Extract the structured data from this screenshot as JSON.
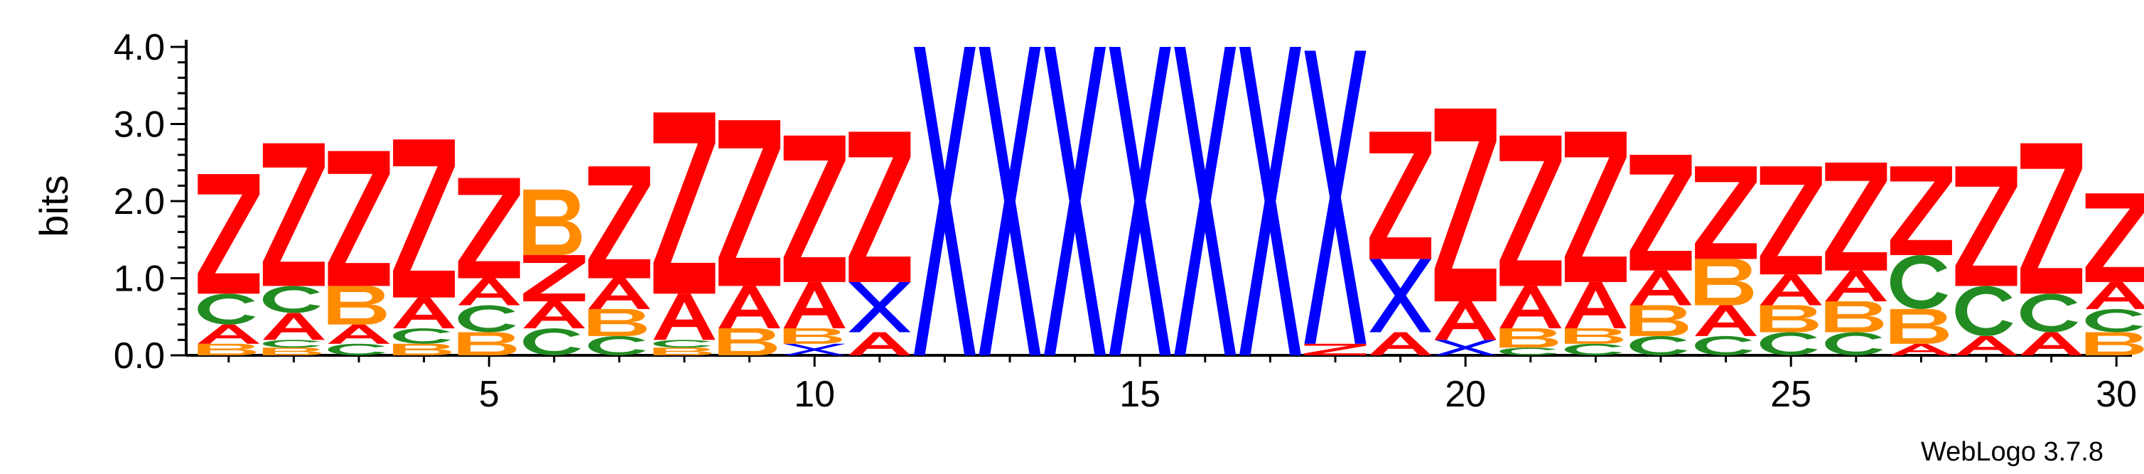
{
  "chart_data": {
    "type": "sequence-logo",
    "ylabel": "bits",
    "ylim": [
      0,
      4.0
    ],
    "y_ticks": [
      "0.0",
      "1.0",
      "2.0",
      "3.0",
      "4.0"
    ],
    "y_tick_values": [
      0,
      1,
      2,
      3,
      4
    ],
    "x_range": [
      1,
      30
    ],
    "x_ticks": [
      "5",
      "10",
      "15",
      "20",
      "25",
      "30"
    ],
    "x_tick_values": [
      5,
      10,
      15,
      20,
      25,
      30
    ],
    "credit": "WebLogo 3.7.8",
    "colors": {
      "Z": "#ff0000",
      "A": "#ff0000",
      "X": "#0000ff",
      "B": "#ff8c00",
      "C": "#228b22"
    },
    "positions": [
      {
        "pos": 1,
        "stack": [
          [
            "B",
            0.15
          ],
          [
            "A",
            0.25
          ],
          [
            "C",
            0.4
          ],
          [
            "Z",
            1.55
          ]
        ]
      },
      {
        "pos": 2,
        "stack": [
          [
            "B",
            0.1
          ],
          [
            "C",
            0.1
          ],
          [
            "A",
            0.35
          ],
          [
            "C",
            0.35
          ],
          [
            "Z",
            1.85
          ]
        ]
      },
      {
        "pos": 3,
        "stack": [
          [
            "C",
            0.15
          ],
          [
            "A",
            0.25
          ],
          [
            "B",
            0.5
          ],
          [
            "Z",
            1.75
          ]
        ]
      },
      {
        "pos": 4,
        "stack": [
          [
            "B",
            0.15
          ],
          [
            "C",
            0.2
          ],
          [
            "A",
            0.4
          ],
          [
            "Z",
            2.05
          ]
        ]
      },
      {
        "pos": 5,
        "stack": [
          [
            "B",
            0.3
          ],
          [
            "C",
            0.35
          ],
          [
            "A",
            0.35
          ],
          [
            "Z",
            1.3
          ]
        ]
      },
      {
        "pos": 6,
        "stack": [
          [
            "C",
            0.35
          ],
          [
            "A",
            0.35
          ],
          [
            "Z",
            0.6
          ],
          [
            "B",
            0.85
          ]
        ]
      },
      {
        "pos": 7,
        "stack": [
          [
            "C",
            0.25
          ],
          [
            "B",
            0.35
          ],
          [
            "A",
            0.4
          ],
          [
            "Z",
            1.45
          ]
        ]
      },
      {
        "pos": 8,
        "stack": [
          [
            "B",
            0.1
          ],
          [
            "C",
            0.1
          ],
          [
            "A",
            0.6
          ],
          [
            "Z",
            2.35
          ]
        ]
      },
      {
        "pos": 9,
        "stack": [
          [
            "B",
            0.35
          ],
          [
            "A",
            0.55
          ],
          [
            "Z",
            2.15
          ]
        ]
      },
      {
        "pos": 10,
        "stack": [
          [
            "X",
            0.15
          ],
          [
            "B",
            0.2
          ],
          [
            "A",
            0.6
          ],
          [
            "Z",
            1.9
          ]
        ]
      },
      {
        "pos": 11,
        "stack": [
          [
            "A",
            0.3
          ],
          [
            "X",
            0.65
          ],
          [
            "Z",
            1.95
          ]
        ]
      },
      {
        "pos": 12,
        "stack": [
          [
            "X",
            4.0
          ]
        ]
      },
      {
        "pos": 13,
        "stack": [
          [
            "X",
            4.0
          ]
        ]
      },
      {
        "pos": 14,
        "stack": [
          [
            "X",
            4.0
          ]
        ]
      },
      {
        "pos": 15,
        "stack": [
          [
            "X",
            4.0
          ]
        ]
      },
      {
        "pos": 16,
        "stack": [
          [
            "X",
            4.0
          ]
        ]
      },
      {
        "pos": 17,
        "stack": [
          [
            "X",
            4.0
          ]
        ]
      },
      {
        "pos": 18,
        "stack": [
          [
            "Z",
            0.15
          ],
          [
            "X",
            3.8
          ]
        ]
      },
      {
        "pos": 19,
        "stack": [
          [
            "A",
            0.3
          ],
          [
            "X",
            0.95
          ],
          [
            "Z",
            1.65
          ]
        ]
      },
      {
        "pos": 20,
        "stack": [
          [
            "X",
            0.2
          ],
          [
            "A",
            0.5
          ],
          [
            "Z",
            2.5
          ]
        ]
      },
      {
        "pos": 21,
        "stack": [
          [
            "C",
            0.1
          ],
          [
            "B",
            0.25
          ],
          [
            "A",
            0.55
          ],
          [
            "Z",
            1.95
          ]
        ]
      },
      {
        "pos": 22,
        "stack": [
          [
            "C",
            0.15
          ],
          [
            "B",
            0.2
          ],
          [
            "A",
            0.6
          ],
          [
            "Z",
            1.95
          ]
        ]
      },
      {
        "pos": 23,
        "stack": [
          [
            "C",
            0.25
          ],
          [
            "B",
            0.4
          ],
          [
            "A",
            0.45
          ],
          [
            "Z",
            1.5
          ]
        ]
      },
      {
        "pos": 24,
        "stack": [
          [
            "C",
            0.25
          ],
          [
            "A",
            0.4
          ],
          [
            "B",
            0.6
          ],
          [
            "Z",
            1.2
          ]
        ]
      },
      {
        "pos": 25,
        "stack": [
          [
            "C",
            0.3
          ],
          [
            "B",
            0.35
          ],
          [
            "A",
            0.4
          ],
          [
            "Z",
            1.4
          ]
        ]
      },
      {
        "pos": 26,
        "stack": [
          [
            "C",
            0.3
          ],
          [
            "B",
            0.4
          ],
          [
            "A",
            0.4
          ],
          [
            "Z",
            1.4
          ]
        ]
      },
      {
        "pos": 27,
        "stack": [
          [
            "A",
            0.15
          ],
          [
            "B",
            0.45
          ],
          [
            "C",
            0.7
          ],
          [
            "Z",
            1.15
          ]
        ]
      },
      {
        "pos": 28,
        "stack": [
          [
            "A",
            0.25
          ],
          [
            "C",
            0.65
          ],
          [
            "Z",
            1.55
          ]
        ]
      },
      {
        "pos": 29,
        "stack": [
          [
            "A",
            0.3
          ],
          [
            "C",
            0.5
          ],
          [
            "Z",
            1.95
          ]
        ]
      },
      {
        "pos": 30,
        "stack": [
          [
            "B",
            0.3
          ],
          [
            "C",
            0.3
          ],
          [
            "A",
            0.35
          ],
          [
            "Z",
            1.15
          ]
        ]
      }
    ]
  }
}
